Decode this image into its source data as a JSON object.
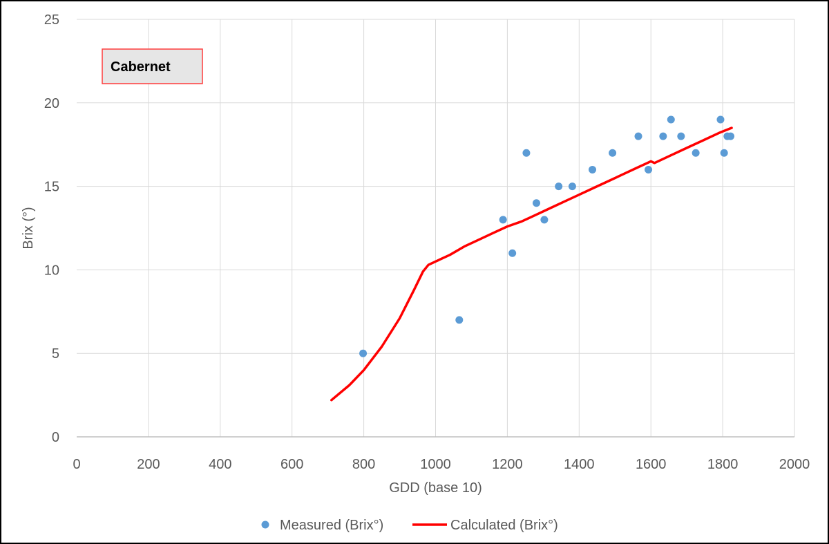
{
  "chart_data": {
    "type": "scatter",
    "xlabel": "GDD (base 10)",
    "ylabel": "Brix (°)",
    "xlim": [
      0,
      2000
    ],
    "ylim": [
      0,
      25
    ],
    "x_ticks": [
      0,
      200,
      400,
      600,
      800,
      1000,
      1200,
      1400,
      1600,
      1800,
      2000
    ],
    "y_ticks": [
      0,
      5,
      10,
      15,
      20,
      25
    ],
    "grid": true,
    "legend_position": "bottom",
    "annotation": "Cabernet",
    "series": [
      {
        "name": "Measured (Brix°)",
        "kind": "scatter",
        "color": "#5b9bd5",
        "points": [
          [
            798,
            5
          ],
          [
            1066,
            7
          ],
          [
            1188,
            13
          ],
          [
            1214,
            11
          ],
          [
            1253,
            17
          ],
          [
            1281,
            14
          ],
          [
            1303,
            13
          ],
          [
            1343,
            15
          ],
          [
            1381,
            15
          ],
          [
            1437,
            16
          ],
          [
            1493,
            17
          ],
          [
            1565,
            18
          ],
          [
            1593,
            16
          ],
          [
            1634,
            18
          ],
          [
            1656,
            19
          ],
          [
            1684,
            18
          ],
          [
            1725,
            17
          ],
          [
            1794,
            19
          ],
          [
            1804,
            17
          ],
          [
            1813,
            18
          ],
          [
            1822,
            18
          ]
        ]
      },
      {
        "name": "Calculated (Brix°)",
        "kind": "line",
        "color": "#ff0000",
        "points": [
          [
            710,
            2.2
          ],
          [
            760,
            3.1
          ],
          [
            800,
            4.0
          ],
          [
            850,
            5.4
          ],
          [
            900,
            7.1
          ],
          [
            940,
            8.8
          ],
          [
            965,
            9.9
          ],
          [
            980,
            10.3
          ],
          [
            1000,
            10.5
          ],
          [
            1040,
            10.9
          ],
          [
            1080,
            11.4
          ],
          [
            1120,
            11.8
          ],
          [
            1160,
            12.2
          ],
          [
            1200,
            12.6
          ],
          [
            1240,
            12.9
          ],
          [
            1280,
            13.3
          ],
          [
            1320,
            13.7
          ],
          [
            1360,
            14.1
          ],
          [
            1400,
            14.5
          ],
          [
            1440,
            14.9
          ],
          [
            1480,
            15.3
          ],
          [
            1520,
            15.7
          ],
          [
            1560,
            16.1
          ],
          [
            1590,
            16.4
          ],
          [
            1600,
            16.5
          ],
          [
            1610,
            16.4
          ],
          [
            1650,
            16.8
          ],
          [
            1700,
            17.3
          ],
          [
            1750,
            17.8
          ],
          [
            1790,
            18.2
          ],
          [
            1825,
            18.5
          ]
        ]
      }
    ]
  }
}
